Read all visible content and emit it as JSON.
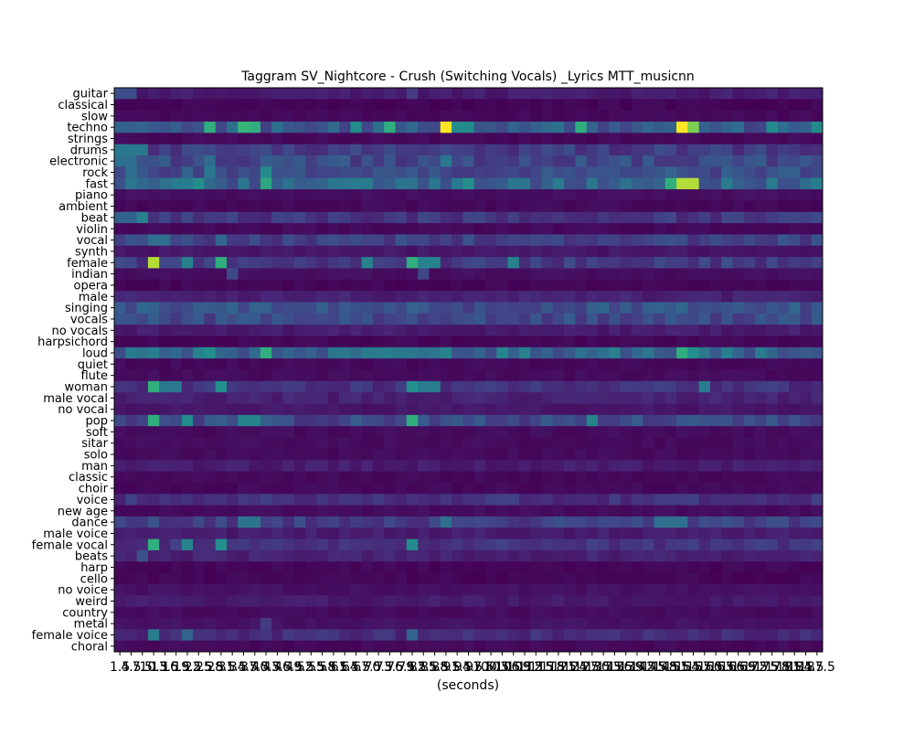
{
  "chart_data": {
    "type": "heatmap",
    "title": "Taggram SV_Nightcore - Crush (Switching Vocals) _Lyrics MTT_musicnn",
    "xlabel": "(seconds)",
    "ylabel": "",
    "tags": [
      "guitar",
      "classical",
      "slow",
      "techno",
      "strings",
      "drums",
      "electronic",
      "rock",
      "fast",
      "piano",
      "ambient",
      "beat",
      "violin",
      "vocal",
      "synth",
      "female",
      "indian",
      "opera",
      "male",
      "singing",
      "vocals",
      "no vocals",
      "harpsichord",
      "loud",
      "quiet",
      "flute",
      "woman",
      "male vocal",
      "no vocal",
      "pop",
      "soft",
      "sitar",
      "solo",
      "man",
      "classic",
      "choir",
      "voice",
      "new age",
      "dance",
      "male voice",
      "female vocal",
      "beats",
      "harp",
      "cello",
      "no voice",
      "weird",
      "country",
      "metal",
      "female voice",
      "choral"
    ],
    "x_ticks": [
      "1.5",
      "4.5",
      "7.5",
      "10.5",
      "13.5",
      "16.5",
      "19.5",
      "22.5",
      "25.5",
      "28.5",
      "31.5",
      "34.5",
      "37.5",
      "40.5",
      "43.5",
      "46.5",
      "49.5",
      "52.5",
      "55.5",
      "58.5",
      "61.5",
      "64.5",
      "67.5",
      "70.5",
      "73.5",
      "76.5",
      "79.5",
      "82.5",
      "85.5",
      "88.5",
      "91.5",
      "94.5",
      "97.5",
      "100.5",
      "103.5",
      "106.5",
      "109.5",
      "112.5",
      "115.5",
      "118.5",
      "121.5",
      "124.5",
      "127.5",
      "130.5",
      "133.5",
      "136.5",
      "139.5",
      "142.5",
      "145.5",
      "148.5",
      "151.5",
      "154.5",
      "157.5",
      "160.5",
      "163.5",
      "166.5",
      "169.5",
      "172.5",
      "175.5",
      "178.5",
      "181.5",
      "184.5",
      "187.5"
    ],
    "colormap": "viridis",
    "value_range": [
      0,
      1
    ],
    "row_profiles": {
      "guitar": {
        "base": 0.1,
        "peaks": [
          [
            0,
            0.3
          ],
          [
            1,
            0.3
          ],
          [
            26,
            0.22
          ]
        ]
      },
      "classical": {
        "base": 0.02,
        "peaks": []
      },
      "slow": {
        "base": 0.03,
        "peaks": []
      },
      "techno": {
        "base": 0.35,
        "peaks": [
          [
            29,
            1.0
          ],
          [
            50,
            1.0
          ],
          [
            51,
            0.85
          ],
          [
            11,
            0.75
          ],
          [
            12,
            0.72
          ],
          [
            24,
            0.72
          ],
          [
            8,
            0.72
          ],
          [
            41,
            0.72
          ],
          [
            30,
            0.6
          ],
          [
            31,
            0.6
          ],
          [
            58,
            0.6
          ],
          [
            62,
            0.6
          ],
          [
            21,
            0.6
          ]
        ]
      },
      "strings": {
        "base": 0.03,
        "peaks": []
      },
      "drums": {
        "base": 0.22,
        "peaks": [
          [
            0,
            0.5
          ],
          [
            1,
            0.5
          ],
          [
            2,
            0.5
          ]
        ]
      },
      "electronic": {
        "base": 0.28,
        "peaks": [
          [
            0,
            0.45
          ],
          [
            1,
            0.45
          ],
          [
            8,
            0.45
          ],
          [
            29,
            0.5
          ]
        ]
      },
      "rock": {
        "base": 0.3,
        "peaks": [
          [
            13,
            0.6
          ],
          [
            8,
            0.5
          ],
          [
            1,
            0.45
          ]
        ]
      },
      "fast": {
        "base": 0.4,
        "peaks": [
          [
            50,
            0.92
          ],
          [
            51,
            0.92
          ],
          [
            49,
            0.72
          ],
          [
            13,
            0.7
          ],
          [
            7,
            0.62
          ],
          [
            31,
            0.62
          ]
        ]
      },
      "piano": {
        "base": 0.05,
        "peaks": []
      },
      "ambient": {
        "base": 0.03,
        "peaks": []
      },
      "beat": {
        "base": 0.2,
        "peaks": [
          [
            2,
            0.55
          ],
          [
            0,
            0.4
          ],
          [
            1,
            0.4
          ]
        ]
      },
      "violin": {
        "base": 0.03,
        "peaks": []
      },
      "vocal": {
        "base": 0.25,
        "peaks": [
          [
            3,
            0.45
          ],
          [
            4,
            0.45
          ],
          [
            9,
            0.42
          ]
        ]
      },
      "synth": {
        "base": 0.08,
        "peaks": []
      },
      "female": {
        "base": 0.22,
        "peaks": [
          [
            3,
            0.92
          ],
          [
            9,
            0.72
          ],
          [
            26,
            0.72
          ],
          [
            6,
            0.55
          ],
          [
            22,
            0.55
          ],
          [
            27,
            0.55
          ],
          [
            28,
            0.55
          ],
          [
            35,
            0.55
          ]
        ]
      },
      "indian": {
        "base": 0.05,
        "peaks": [
          [
            10,
            0.28
          ],
          [
            27,
            0.26
          ]
        ]
      },
      "opera": {
        "base": 0.02,
        "peaks": []
      },
      "male": {
        "base": 0.12,
        "peaks": []
      },
      "singing": {
        "base": 0.32,
        "peaks": [
          [
            3,
            0.4
          ],
          [
            26,
            0.4
          ]
        ]
      },
      "vocals": {
        "base": 0.28,
        "peaks": []
      },
      "no vocals": {
        "base": 0.1,
        "peaks": []
      },
      "harpsichord": {
        "base": 0.02,
        "peaks": []
      },
      "loud": {
        "base": 0.42,
        "peaks": [
          [
            13,
            0.72
          ],
          [
            50,
            0.72
          ],
          [
            51,
            0.62
          ],
          [
            8,
            0.62
          ],
          [
            7,
            0.55
          ],
          [
            36,
            0.55
          ]
        ]
      },
      "quiet": {
        "base": 0.03,
        "peaks": []
      },
      "flute": {
        "base": 0.04,
        "peaks": []
      },
      "woman": {
        "base": 0.18,
        "peaks": [
          [
            3,
            0.72
          ],
          [
            9,
            0.62
          ],
          [
            26,
            0.62
          ],
          [
            4,
            0.5
          ],
          [
            5,
            0.5
          ],
          [
            27,
            0.52
          ],
          [
            28,
            0.52
          ],
          [
            52,
            0.52
          ]
        ]
      },
      "male vocal": {
        "base": 0.12,
        "peaks": []
      },
      "no vocal": {
        "base": 0.08,
        "peaks": []
      },
      "pop": {
        "base": 0.28,
        "peaks": [
          [
            3,
            0.72
          ],
          [
            26,
            0.72
          ],
          [
            6,
            0.6
          ],
          [
            11,
            0.56
          ],
          [
            12,
            0.56
          ],
          [
            42,
            0.56
          ]
        ]
      },
      "soft": {
        "base": 0.04,
        "peaks": []
      },
      "sitar": {
        "base": 0.04,
        "peaks": []
      },
      "solo": {
        "base": 0.04,
        "peaks": []
      },
      "man": {
        "base": 0.1,
        "peaks": []
      },
      "classic": {
        "base": 0.03,
        "peaks": []
      },
      "choir": {
        "base": 0.03,
        "peaks": []
      },
      "voice": {
        "base": 0.18,
        "peaks": []
      },
      "new age": {
        "base": 0.04,
        "peaks": []
      },
      "dance": {
        "base": 0.24,
        "peaks": [
          [
            11,
            0.48
          ],
          [
            12,
            0.48
          ],
          [
            29,
            0.46
          ],
          [
            48,
            0.46
          ],
          [
            49,
            0.46
          ],
          [
            50,
            0.46
          ]
        ]
      },
      "male voice": {
        "base": 0.1,
        "peaks": []
      },
      "female vocal": {
        "base": 0.18,
        "peaks": [
          [
            3,
            0.72
          ],
          [
            9,
            0.62
          ],
          [
            26,
            0.6
          ],
          [
            6,
            0.55
          ]
        ]
      },
      "beats": {
        "base": 0.12,
        "peaks": [
          [
            2,
            0.32
          ]
        ]
      },
      "harp": {
        "base": 0.02,
        "peaks": []
      },
      "cello": {
        "base": 0.02,
        "peaks": []
      },
      "no voice": {
        "base": 0.06,
        "peaks": []
      },
      "weird": {
        "base": 0.09,
        "peaks": []
      },
      "country": {
        "base": 0.04,
        "peaks": []
      },
      "metal": {
        "base": 0.06,
        "peaks": [
          [
            13,
            0.22
          ]
        ]
      },
      "female voice": {
        "base": 0.16,
        "peaks": [
          [
            3,
            0.52
          ],
          [
            6,
            0.4
          ],
          [
            26,
            0.4
          ]
        ]
      },
      "choral": {
        "base": 0.03,
        "peaks": []
      }
    }
  }
}
